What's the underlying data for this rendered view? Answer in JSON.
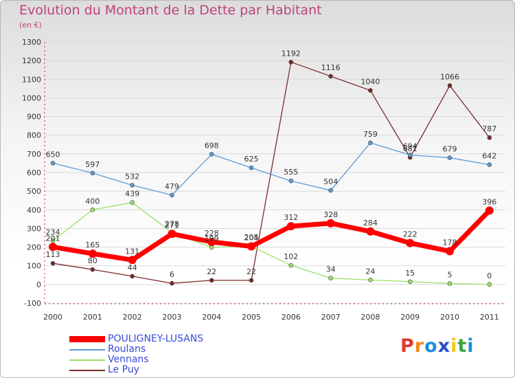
{
  "title": "Evolution du Montant de la Dette par Habitant",
  "unit": "(en €)",
  "brand": {
    "text": "Proxiti",
    "colors": [
      "#e03a2a",
      "#f28a1e",
      "#1e8fd8",
      "#2a4ec8",
      "#f5c816",
      "#3aa63a",
      "#1e8fd8"
    ]
  },
  "chart_data": {
    "type": "line",
    "x": [
      "2000",
      "2001",
      "2002",
      "2003",
      "2004",
      "2005",
      "2006",
      "2007",
      "2008",
      "2009",
      "2010",
      "2011"
    ],
    "ylim": [
      -100,
      1300
    ],
    "yticks": [
      -100,
      0,
      100,
      200,
      300,
      400,
      500,
      600,
      700,
      800,
      900,
      1000,
      1100,
      1200,
      1300
    ],
    "grid": true,
    "legend_position": "bottom-left",
    "series": [
      {
        "name": "POULIGNEY-LUSANS",
        "color": "#ff0000",
        "values": [
          201,
          165,
          131,
          271,
          228,
          204,
          312,
          328,
          284,
          222,
          178,
          396
        ]
      },
      {
        "name": "Roulans",
        "color": "#5b9bd5",
        "values": [
          650,
          597,
          532,
          479,
          698,
          625,
          555,
          504,
          759,
          694,
          679,
          642
        ]
      },
      {
        "name": "Vennans",
        "color": "#99e066",
        "values": [
          234,
          400,
          439,
          278,
          199,
          205,
          102,
          34,
          24,
          15,
          5,
          0
        ]
      },
      {
        "name": "Le Puy",
        "color": "#7a2a2a",
        "values": [
          113,
          80,
          44,
          6,
          22,
          22,
          1192,
          1116,
          1040,
          681,
          1066,
          787
        ]
      }
    ]
  }
}
